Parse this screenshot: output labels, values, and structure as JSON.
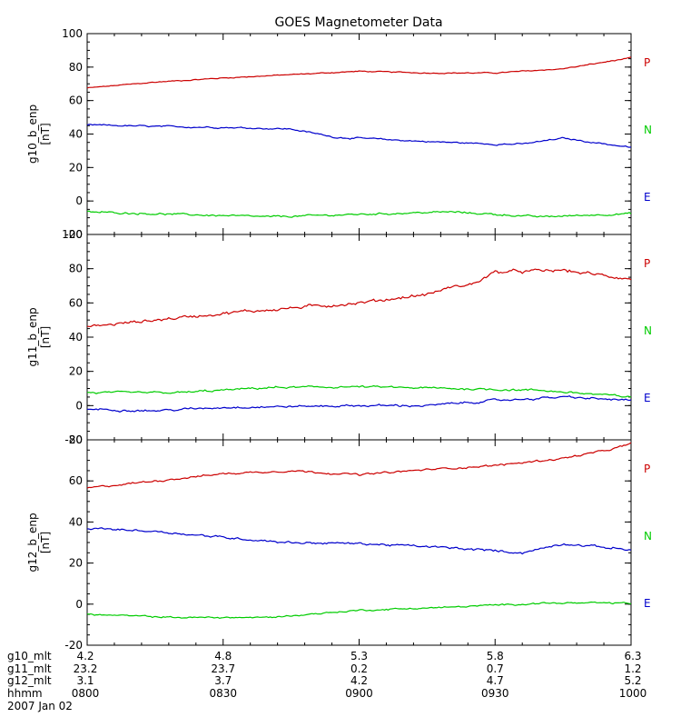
{
  "chart_data": {
    "title": "GOES Magnetometer Data",
    "type": "line",
    "x_range_minutes": [
      480,
      600
    ],
    "panels": [
      {
        "ylabel_top": "g10_b_enp",
        "ylabel_bottom": "[nT]",
        "ylim": [
          -20,
          100
        ],
        "yticks": [
          -20,
          0,
          20,
          40,
          60,
          80,
          100
        ],
        "legend": [
          {
            "label": "P",
            "color": "#cc0000"
          },
          {
            "label": "N",
            "color": "#00cc00"
          },
          {
            "label": "E",
            "color": "#0000cc"
          }
        ],
        "series": [
          {
            "color": "#cc0000",
            "noise": 0.4,
            "x": [
              480,
              495,
              510,
              525,
              540,
              555,
              570,
              585,
              600
            ],
            "y": [
              67.5,
              71,
              73.5,
              75.5,
              77.5,
              76.5,
              76.5,
              79,
              85.5
            ]
          },
          {
            "color": "#0000cc",
            "noise": 0.6,
            "x": [
              480,
              495,
              510,
              525,
              535,
              540,
              555,
              570,
              576,
              585,
              600
            ],
            "y": [
              45.5,
              44.5,
              44,
              43,
              38,
              37.5,
              35.5,
              34,
              34,
              37.5,
              32
            ]
          },
          {
            "color": "#00cc00",
            "noise": 0.7,
            "x": [
              480,
              500,
              520,
              540,
              560,
              580,
              600
            ],
            "y": [
              -6.5,
              -8,
              -9.5,
              -8,
              -6.5,
              -9.5,
              -7.5
            ]
          }
        ]
      },
      {
        "ylabel_top": "g11_b_enp",
        "ylabel_bottom": "[nT]",
        "ylim": [
          -20,
          100
        ],
        "yticks": [
          -20,
          0,
          20,
          40,
          60,
          80,
          100
        ],
        "legend": [
          {
            "label": "P",
            "color": "#cc0000"
          },
          {
            "label": "N",
            "color": "#00cc00"
          },
          {
            "label": "E",
            "color": "#0000cc"
          }
        ],
        "series": [
          {
            "color": "#cc0000",
            "noise": 1.2,
            "x": [
              480,
              495,
              510,
              525,
              540,
              555,
              560,
              565,
              570,
              585,
              600
            ],
            "y": [
              46,
              50,
              54,
              57,
              60,
              65,
              69,
              71,
              78,
              79,
              74
            ]
          },
          {
            "color": "#00cc00",
            "noise": 0.8,
            "x": [
              480,
              500,
              520,
              540,
              560,
              580,
              600
            ],
            "y": [
              7.5,
              7.5,
              10.5,
              11,
              10,
              9,
              5
            ]
          },
          {
            "color": "#0000cc",
            "noise": 0.8,
            "x": [
              480,
              495,
              510,
              525,
              540,
              555,
              570,
              585,
              600
            ],
            "y": [
              -2,
              -3,
              -1,
              -0.5,
              0,
              0,
              3,
              5,
              3
            ]
          }
        ]
      },
      {
        "ylabel_top": "g12_b_enp",
        "ylabel_bottom": "[nT]",
        "ylim": [
          -20,
          80
        ],
        "yticks": [
          -20,
          0,
          20,
          40,
          60,
          80
        ],
        "legend": [
          {
            "label": "P",
            "color": "#cc0000"
          },
          {
            "label": "N",
            "color": "#00cc00"
          },
          {
            "label": "E",
            "color": "#0000cc"
          }
        ],
        "series": [
          {
            "color": "#cc0000",
            "noise": 0.6,
            "x": [
              480,
              495,
              510,
              525,
              540,
              555,
              570,
              585,
              595,
              600
            ],
            "y": [
              56.5,
              60,
              63.5,
              65,
              63,
              65.5,
              67.5,
              71,
              75,
              78
            ]
          },
          {
            "color": "#0000cc",
            "noise": 0.7,
            "x": [
              480,
              495,
              510,
              525,
              540,
              555,
              570,
              576,
              585,
              600
            ],
            "y": [
              37,
              35.5,
              32.5,
              30,
              29.5,
              28,
              26,
              25,
              29.5,
              26.5
            ]
          },
          {
            "color": "#00cc00",
            "noise": 0.5,
            "x": [
              480,
              500,
              520,
              540,
              560,
              580,
              600
            ],
            "y": [
              -5,
              -6.5,
              -6.5,
              -3,
              -1.5,
              0.5,
              0.5
            ]
          }
        ]
      }
    ],
    "footer": {
      "rows": [
        {
          "label": "g10_mlt",
          "values": [
            "4.2",
            "4.8",
            "5.3",
            "5.8",
            "6.3"
          ]
        },
        {
          "label": "g11_mlt",
          "values": [
            "23.2",
            "23.7",
            "0.2",
            "0.7",
            "1.2"
          ]
        },
        {
          "label": "g12_mlt",
          "values": [
            "3.1",
            "3.7",
            "4.2",
            "4.7",
            "5.2"
          ]
        },
        {
          "label": "hhmm",
          "values": [
            "0800",
            "0830",
            "0900",
            "0930",
            "1000"
          ]
        }
      ],
      "date": "2007 Jan 02"
    }
  }
}
